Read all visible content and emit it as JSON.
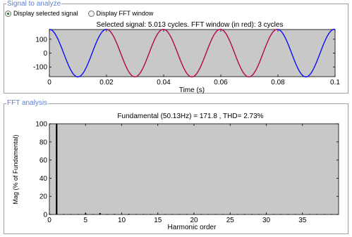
{
  "signal_panel": {
    "title": "Signal to analyze",
    "radio_selected_signal": "Display selected signal",
    "radio_fft_window": "Display FFT window",
    "selected": "selected_signal"
  },
  "fft_panel": {
    "title": "FFT analysis"
  },
  "colors": {
    "signal": "#0000ff",
    "fft_window": "#c8103c",
    "axes_bg": "#c8c8c8",
    "bar": "#000000"
  },
  "chart_data": [
    {
      "type": "line",
      "title": "Selected signal: 5.013 cycles. FFT window (in red): 3 cycles",
      "xlabel": "Time (s)",
      "ylabel": "",
      "xlim": [
        0,
        0.1
      ],
      "ylim": [
        -170,
        170
      ],
      "xticks": [
        0,
        0.02,
        0.04,
        0.06,
        0.08,
        0.1
      ],
      "xtick_labels": [
        "0",
        "0.02",
        "0.04",
        "0.06",
        "0.08",
        "0.1"
      ],
      "yticks": [
        100,
        0,
        -100
      ],
      "ytick_labels": [
        "100",
        "0",
        "-100"
      ],
      "frequency_hz": 50.13,
      "amplitude": 171.8,
      "phase_note": "cosine",
      "series": [
        {
          "name": "signal",
          "x_range": [
            0,
            0.1
          ]
        },
        {
          "name": "FFT window",
          "x_range": [
            0.02,
            0.08
          ]
        }
      ]
    },
    {
      "type": "bar",
      "title": "Fundamental (50.13Hz) = 171.8 , THD= 2.73%",
      "xlabel": "Harmonic order",
      "ylabel": "Mag (% of Fundamental)",
      "xlim": [
        0,
        40
      ],
      "ylim": [
        0,
        100
      ],
      "xticks": [
        0,
        5,
        10,
        15,
        20,
        25,
        30,
        35
      ],
      "xtick_labels": [
        "0",
        "5",
        "10",
        "15",
        "20",
        "25",
        "30",
        "35"
      ],
      "yticks": [
        0,
        20,
        40,
        60,
        80,
        100
      ],
      "ytick_labels": [
        "0",
        "20",
        "40",
        "60",
        "80",
        "100"
      ],
      "categories": [
        0,
        1,
        2,
        3,
        4,
        5,
        6,
        7,
        8,
        9,
        10,
        11,
        12,
        13,
        14,
        15,
        16,
        17,
        18,
        19,
        20,
        21,
        22,
        23,
        24,
        25,
        26,
        27,
        28,
        29,
        30,
        31,
        32,
        33,
        34,
        35,
        36,
        37,
        38,
        39
      ],
      "values": [
        0.3,
        100,
        0.3,
        0.4,
        0.2,
        1.2,
        0.2,
        1.6,
        0.2,
        0.6,
        0.1,
        0.7,
        0.1,
        0.4,
        0.1,
        0.3,
        0.1,
        0.4,
        0.1,
        0.3,
        0.1,
        0.3,
        0.1,
        0.3,
        0.1,
        0.3,
        0.1,
        0.2,
        0.1,
        0.2,
        0.1,
        0.2,
        0.1,
        0.2,
        0.1,
        0.2,
        0.1,
        0.2,
        0.1,
        0.2
      ]
    }
  ]
}
